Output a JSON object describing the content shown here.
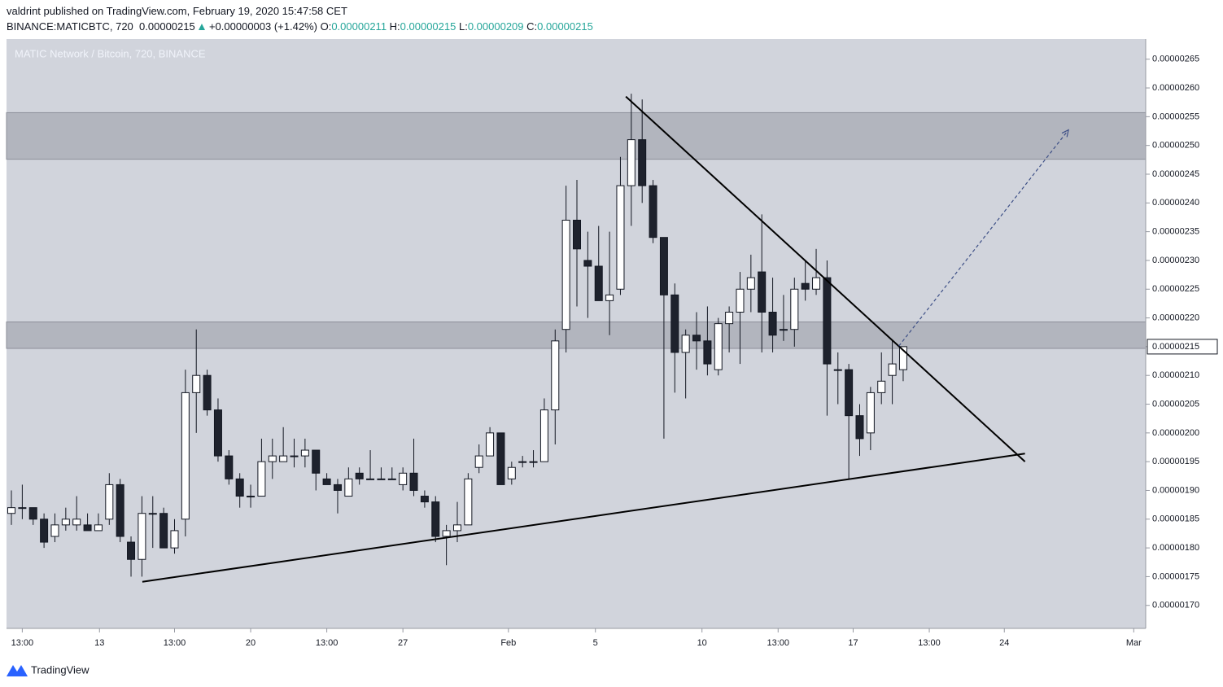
{
  "chart_data": {
    "type": "candlestick",
    "title": "MATIC Network / Bitcoin, 720, BINANCE",
    "header": {
      "publisher": "valdrint published on TradingView.com, February 19, 2020 15:47:58 CET",
      "symbol": "BINANCE:MATICBTC, 720",
      "price": "0.00000215",
      "change": "+0.00000003 (+1.42%)",
      "open_label": "O:",
      "open": "0.00000211",
      "high_label": "H:",
      "high": "0.00000215",
      "low_label": "L:",
      "low": "0.00000209",
      "close_label": "C:",
      "close": "0.00000215"
    },
    "categories": [
      null,
      null,
      null,
      null,
      null,
      null,
      null,
      null,
      null,
      null,
      null,
      null,
      null,
      null,
      null,
      null,
      null,
      null,
      null,
      null,
      null,
      null,
      null,
      null,
      null,
      null,
      null,
      null,
      null,
      null,
      null,
      null,
      null,
      null,
      null,
      null,
      null,
      null,
      null,
      null,
      null,
      null,
      null,
      null,
      null,
      null,
      null,
      null,
      null,
      null,
      null,
      null,
      null,
      null,
      null,
      null,
      null,
      null,
      null,
      null,
      null,
      null,
      null,
      null,
      null,
      null,
      null,
      null,
      null,
      null,
      null,
      null,
      null,
      null,
      null,
      null,
      null,
      null,
      null,
      null,
      null,
      null,
      null
    ],
    "open": [
      1.86e-06,
      1.87e-06,
      1.87e-06,
      1.85e-06,
      1.82e-06,
      1.84e-06,
      1.84e-06,
      1.84e-06,
      1.83e-06,
      1.85e-06,
      1.91e-06,
      1.81e-06,
      1.78e-06,
      1.86e-06,
      1.86e-06,
      1.8e-06,
      1.85e-06,
      2.07e-06,
      2.1e-06,
      2.04e-06,
      1.96e-06,
      1.92e-06,
      1.89e-06,
      1.89e-06,
      1.95e-06,
      1.95e-06,
      1.96e-06,
      1.96e-06,
      1.97e-06,
      1.92e-06,
      1.91e-06,
      1.89e-06,
      1.93e-06,
      1.92e-06,
      1.92e-06,
      1.92e-06,
      1.91e-06,
      1.93e-06,
      1.89e-06,
      1.88e-06,
      1.82e-06,
      1.83e-06,
      1.84e-06,
      1.94e-06,
      1.96e-06,
      2e-06,
      1.92e-06,
      1.95e-06,
      1.95e-06,
      1.95e-06,
      2.04e-06,
      2.18e-06,
      2.37e-06,
      2.3e-06,
      2.29e-06,
      2.23e-06,
      2.25e-06,
      2.43e-06,
      2.51e-06,
      2.43e-06,
      2.34e-06,
      2.24e-06,
      2.14e-06,
      2.17e-06,
      2.16e-06,
      2.11e-06,
      2.19e-06,
      2.21e-06,
      2.25e-06,
      2.28e-06,
      2.21e-06,
      2.18e-06,
      2.18e-06,
      2.26e-06,
      2.25e-06,
      2.27e-06,
      2.11e-06,
      2.11e-06,
      2.03e-06,
      2e-06,
      2.07e-06,
      2.1e-06,
      2.11e-06
    ],
    "close": [
      1.87e-06,
      1.87e-06,
      1.85e-06,
      1.81e-06,
      1.84e-06,
      1.85e-06,
      1.85e-06,
      1.83e-06,
      1.84e-06,
      1.91e-06,
      1.82e-06,
      1.78e-06,
      1.86e-06,
      1.86e-06,
      1.8e-06,
      1.83e-06,
      2.07e-06,
      2.1e-06,
      2.04e-06,
      1.96e-06,
      1.92e-06,
      1.89e-06,
      1.89e-06,
      1.95e-06,
      1.96e-06,
      1.96e-06,
      1.96e-06,
      1.97e-06,
      1.93e-06,
      1.91e-06,
      1.9e-06,
      1.92e-06,
      1.92e-06,
      1.92e-06,
      1.92e-06,
      1.92e-06,
      1.93e-06,
      1.9e-06,
      1.88e-06,
      1.82e-06,
      1.83e-06,
      1.84e-06,
      1.92e-06,
      1.96e-06,
      2e-06,
      1.91e-06,
      1.94e-06,
      1.95e-06,
      1.95e-06,
      2.04e-06,
      2.16e-06,
      2.37e-06,
      2.32e-06,
      2.29e-06,
      2.23e-06,
      2.24e-06,
      2.43e-06,
      2.51e-06,
      2.43e-06,
      2.34e-06,
      2.24e-06,
      2.14e-06,
      2.17e-06,
      2.16e-06,
      2.12e-06,
      2.19e-06,
      2.21e-06,
      2.25e-06,
      2.27e-06,
      2.21e-06,
      2.17e-06,
      2.18e-06,
      2.25e-06,
      2.25e-06,
      2.27e-06,
      2.12e-06,
      2.11e-06,
      2.03e-06,
      1.99e-06,
      2.07e-06,
      2.09e-06,
      2.12e-06,
      2.15e-06
    ],
    "high": [
      1.9e-06,
      1.91e-06,
      1.87e-06,
      1.86e-06,
      1.86e-06,
      1.87e-06,
      1.89e-06,
      1.86e-06,
      1.86e-06,
      1.93e-06,
      1.92e-06,
      1.82e-06,
      1.89e-06,
      1.89e-06,
      1.87e-06,
      1.85e-06,
      2.11e-06,
      2.18e-06,
      2.11e-06,
      2.06e-06,
      1.97e-06,
      1.93e-06,
      1.91e-06,
      1.99e-06,
      1.99e-06,
      2.01e-06,
      1.99e-06,
      1.99e-06,
      1.97e-06,
      1.93e-06,
      1.92e-06,
      1.94e-06,
      1.94e-06,
      1.97e-06,
      1.94e-06,
      1.94e-06,
      1.94e-06,
      1.99e-06,
      1.9e-06,
      1.89e-06,
      1.84e-06,
      1.88e-06,
      1.93e-06,
      1.98e-06,
      2.01e-06,
      2e-06,
      1.95e-06,
      1.96e-06,
      1.97e-06,
      2.06e-06,
      2.18e-06,
      2.43e-06,
      2.44e-06,
      2.35e-06,
      2.36e-06,
      2.35e-06,
      2.48e-06,
      2.59e-06,
      2.58e-06,
      2.44e-06,
      2.34e-06,
      2.26e-06,
      2.18e-06,
      2.21e-06,
      2.22e-06,
      2.2e-06,
      2.22e-06,
      2.28e-06,
      2.31e-06,
      2.38e-06,
      2.27e-06,
      2.24e-06,
      2.27e-06,
      2.3e-06,
      2.32e-06,
      2.3e-06,
      2.14e-06,
      2.12e-06,
      2.05e-06,
      2.08e-06,
      2.14e-06,
      2.16e-06,
      2.15e-06
    ],
    "low": [
      1.84e-06,
      1.85e-06,
      1.84e-06,
      1.8e-06,
      1.81e-06,
      1.83e-06,
      1.83e-06,
      1.83e-06,
      1.83e-06,
      1.84e-06,
      1.81e-06,
      1.75e-06,
      1.75e-06,
      1.8e-06,
      1.8e-06,
      1.79e-06,
      1.82e-06,
      2e-06,
      2.03e-06,
      1.95e-06,
      1.91e-06,
      1.87e-06,
      1.87e-06,
      1.89e-06,
      1.92e-06,
      1.95e-06,
      1.94e-06,
      1.94e-06,
      1.9e-06,
      1.91e-06,
      1.86e-06,
      1.89e-06,
      1.91e-06,
      1.92e-06,
      1.92e-06,
      1.92e-06,
      1.9e-06,
      1.89e-06,
      1.87e-06,
      1.81e-06,
      1.77e-06,
      1.81e-06,
      1.84e-06,
      1.93e-06,
      1.96e-06,
      1.91e-06,
      1.91e-06,
      1.94e-06,
      1.94e-06,
      1.95e-06,
      1.98e-06,
      2.14e-06,
      2.22e-06,
      2.2e-06,
      2.23e-06,
      2.17e-06,
      2.24e-06,
      2.36e-06,
      2.4e-06,
      2.33e-06,
      1.99e-06,
      2.07e-06,
      2.06e-06,
      2.11e-06,
      2.1e-06,
      2.1e-06,
      2.14e-06,
      2.12e-06,
      2.21e-06,
      2.14e-06,
      2.14e-06,
      2.16e-06,
      2.15e-06,
      2.23e-06,
      2.24e-06,
      2.03e-06,
      2.05e-06,
      1.92e-06,
      1.96e-06,
      1.97e-06,
      2.05e-06,
      2.05e-06,
      2.09e-06
    ],
    "up_color": "#ffffff",
    "down_color": "#1e222d",
    "wick_color": "#131722",
    "last_price": 2.15e-06,
    "zones": [
      {
        "from": 2.476e-06,
        "to": 2.557e-06
      },
      {
        "from": 2.147e-06,
        "to": 2.193e-06
      }
    ],
    "trend_lines": [
      {
        "x": [
          56.5,
          93.2
        ],
        "y": [
          2.585e-06,
          1.95e-06
        ]
      },
      {
        "x": [
          12.04,
          93.2
        ],
        "y": [
          1.741e-06,
          1.964e-06
        ]
      }
    ],
    "projection": {
      "x": [
        81.6,
        97.2
      ],
      "y": [
        2.151e-06,
        2.527e-06
      ]
    },
    "xlim": [
      -0.45,
      104.3
    ],
    "ylim": [
      1.66e-06,
      2.685e-06
    ],
    "xticks": [
      {
        "value": 1,
        "label": "13:00"
      },
      {
        "value": 8.1,
        "label": "13"
      },
      {
        "value": 15,
        "label": "13:00"
      },
      {
        "value": 22,
        "label": "20"
      },
      {
        "value": 29,
        "label": "13:00"
      },
      {
        "value": 36,
        "label": "27"
      },
      {
        "value": 45.7,
        "label": "Feb"
      },
      {
        "value": 53.7,
        "label": "5"
      },
      {
        "value": 63.5,
        "label": "10"
      },
      {
        "value": 70.5,
        "label": "13:00"
      },
      {
        "value": 77.4,
        "label": "17"
      },
      {
        "value": 84.4,
        "label": "13:00"
      },
      {
        "value": 91.3,
        "label": "24"
      },
      {
        "value": 103.2,
        "label": "Mar"
      }
    ],
    "yticks": [
      2.65e-06,
      {
        "value": 2.6e-06,
        "label": "0.00000260"
      },
      2.55e-06,
      {
        "value": 2.5e-06,
        "label": "0.00000250"
      },
      2.45e-06,
      {
        "value": 2.4e-06,
        "label": "0.00000240"
      },
      2.35e-06,
      {
        "value": 2.3e-06,
        "label": "0.00000230"
      },
      2.25e-06,
      {
        "value": 2.2e-06,
        "label": "0.00000220"
      },
      2.15e-06,
      {
        "value": 2.1e-06,
        "label": "0.00000210"
      },
      2.05e-06,
      {
        "value": 2e-06,
        "label": "0.00000200"
      },
      1.95e-06,
      {
        "value": 1.9e-06,
        "label": "0.00000190"
      },
      1.85e-06,
      {
        "value": 1.8e-06,
        "label": "0.00000180"
      },
      1.75e-06,
      {
        "value": 1.7e-06,
        "label": "0.00000170"
      }
    ],
    "footer": {
      "brand": "TradingView"
    }
  }
}
